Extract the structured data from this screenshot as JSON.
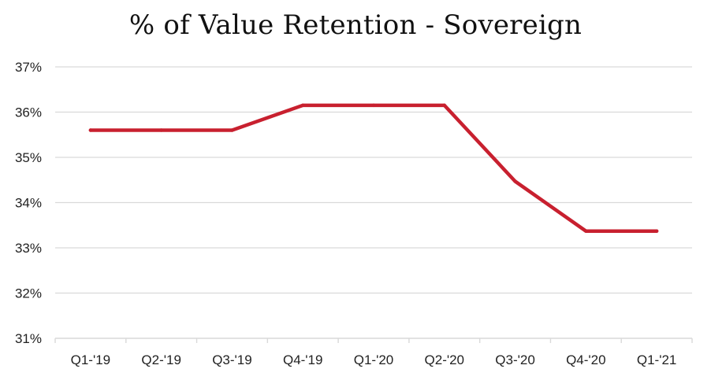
{
  "chart_data": {
    "type": "line",
    "title": "% of Value Retention - Sovereign",
    "xlabel": "",
    "ylabel": "",
    "categories": [
      "Q1-'19",
      "Q2-'19",
      "Q3-'19",
      "Q4-'19",
      "Q1-'20",
      "Q2-'20",
      "Q3-'20",
      "Q4-'20",
      "Q1-'21"
    ],
    "series": [
      {
        "values": [
          35.6,
          35.6,
          35.6,
          36.15,
          36.15,
          36.15,
          34.47,
          33.37,
          33.37
        ],
        "color": "#c8202f"
      }
    ],
    "ylim": [
      31,
      37
    ],
    "yticks": [
      31,
      32,
      33,
      34,
      35,
      36,
      37
    ],
    "ytick_labels": [
      "31%",
      "32%",
      "33%",
      "34%",
      "35%",
      "36%",
      "37%"
    ],
    "grid": true,
    "gridColor": "#d9d9d9",
    "legend": "none"
  }
}
